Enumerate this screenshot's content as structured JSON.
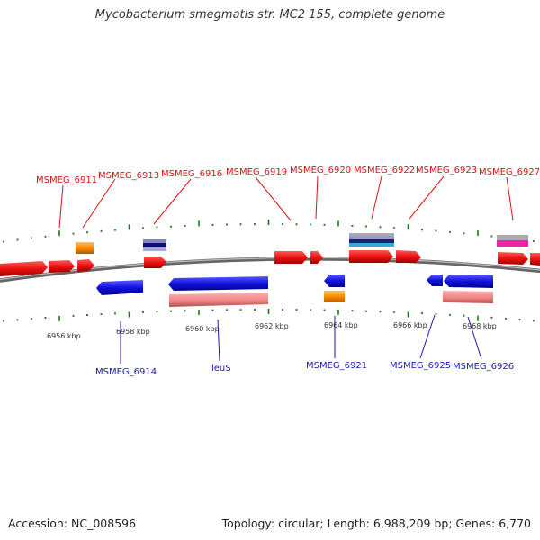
{
  "title": "Mycobacterium smegmatis str. MC2 155, complete genome",
  "footer": {
    "accession": "Accession: NC_008596",
    "summary": "Topology: circular; Length: 6,988,209 bp; Genes: 6,770"
  },
  "colors": {
    "forward_gene": "#ee1111",
    "reverse_gene": "#1111dd",
    "rrna_like": "#ff8c00",
    "pseudo_pink": "#ee8080",
    "backbone": "#888888",
    "tick": "#1a7a1a",
    "label_top": "#dd1111",
    "label_bottom": "#1a1ab0"
  },
  "scale_labels": [
    "6956 kbp",
    "6958 kbp",
    "6960 kbp",
    "6962 kbp",
    "6964 kbp",
    "6966 kbp",
    "6968 kbp"
  ],
  "top_labels": [
    "MSMEG_6911",
    "MSMEG_6913",
    "MSMEG_6916",
    "MSMEG_6919",
    "MSMEG_6920",
    "MSMEG_6922",
    "MSMEG_6923",
    "MSMEG_6927"
  ],
  "bottom_labels": [
    "MSMEG_6914",
    "leuS",
    "MSMEG_6921",
    "MSMEG_6925",
    "MSMEG_6926"
  ]
}
